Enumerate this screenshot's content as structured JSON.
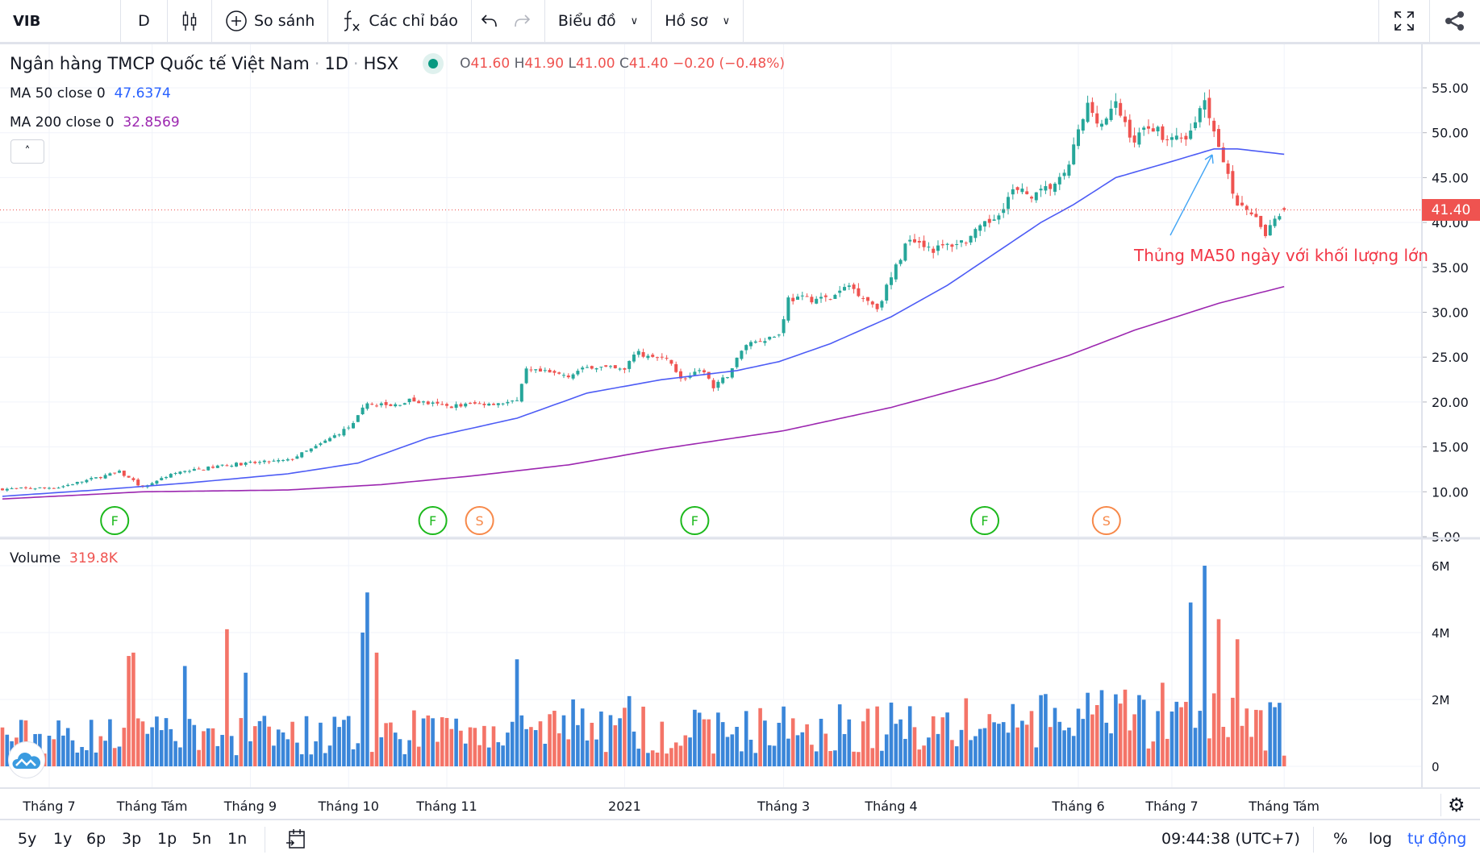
{
  "toolbar": {
    "symbol": "VIB",
    "interval": "D",
    "compare_label": "So sánh",
    "indicators_label": "Các chỉ báo",
    "chart_menu_label": "Biểu đồ",
    "profile_menu_label": "Hồ sơ"
  },
  "legend": {
    "name": "Ngân hàng TMCP Quốc tế Việt Nam",
    "timeframe": "1D",
    "exchange": "HSX",
    "o_label": "O",
    "o": "41.60",
    "h_label": "H",
    "h": "41.90",
    "l_label": "L",
    "l": "41.00",
    "c_label": "C",
    "c": "41.40",
    "change": "−0.20 (−0.48%)",
    "ma50_label": "MA 50 close 0",
    "ma50_value": "47.6374",
    "ma200_label": "MA 200 close 0",
    "ma200_value": "32.8569",
    "volume_label": "Volume",
    "volume_value": "319.8K"
  },
  "annotation": "Thủng MA50 ngày với khối lượng lớn",
  "current_price": "41.40",
  "colors": {
    "up": "#26a69a",
    "down": "#ef5350",
    "vol_up": "#3a86d9",
    "vol_down": "#f47468",
    "ma50": "#4d5cf5",
    "ma200": "#9c27b0",
    "event_f": "#1db91d",
    "event_s": "#f7894a"
  },
  "chart_data": {
    "type": "candlestick",
    "bars": 275,
    "price_axis": [
      "55.00",
      "50.00",
      "45.00",
      "40.00",
      "35.00",
      "30.00",
      "25.00",
      "20.00",
      "15.00",
      "10.00",
      "5.00"
    ],
    "ylim": [
      5,
      55
    ],
    "volume_axis": [
      "6M",
      "4M",
      "2M",
      "0"
    ],
    "volume_ylim": [
      0,
      6000000
    ],
    "time_labels": [
      {
        "label": "Tháng 7",
        "bar": 10
      },
      {
        "label": "Tháng Tám",
        "bar": 32
      },
      {
        "label": "Tháng 9",
        "bar": 53
      },
      {
        "label": "Tháng 10",
        "bar": 74
      },
      {
        "label": "Tháng 11",
        "bar": 95
      },
      {
        "label": "2021",
        "bar": 133
      },
      {
        "label": "Tháng 3",
        "bar": 167
      },
      {
        "label": "Tháng 4",
        "bar": 190
      },
      {
        "label": "Tháng 6",
        "bar": 230
      },
      {
        "label": "Tháng 7",
        "bar": 250
      },
      {
        "label": "Tháng Tám",
        "bar": 274
      }
    ],
    "close_anchors": [
      [
        0,
        10.3
      ],
      [
        12,
        10.5
      ],
      [
        25,
        12.2
      ],
      [
        30,
        10.5
      ],
      [
        36,
        12.0
      ],
      [
        48,
        13.0
      ],
      [
        61,
        13.5
      ],
      [
        67,
        15.0
      ],
      [
        75,
        17.5
      ],
      [
        78,
        20
      ],
      [
        83,
        19.5
      ],
      [
        87,
        20.2
      ],
      [
        95,
        19.5
      ],
      [
        101,
        19.8
      ],
      [
        110,
        20
      ],
      [
        112,
        23.5
      ],
      [
        121,
        23
      ],
      [
        126,
        24
      ],
      [
        133,
        23.5
      ],
      [
        135,
        25.5
      ],
      [
        143,
        24.5
      ],
      [
        145,
        22.5
      ],
      [
        150,
        23.5
      ],
      [
        152,
        21.5
      ],
      [
        155,
        23
      ],
      [
        159,
        26.5
      ],
      [
        166,
        27.5
      ],
      [
        168,
        31.5
      ],
      [
        177,
        31.5
      ],
      [
        181,
        33
      ],
      [
        187,
        30.5
      ],
      [
        191,
        35
      ],
      [
        194,
        38.5
      ],
      [
        199,
        37
      ],
      [
        206,
        38
      ],
      [
        212,
        40.5
      ],
      [
        216,
        43.5
      ],
      [
        221,
        43
      ],
      [
        227,
        45
      ],
      [
        230,
        50
      ],
      [
        232,
        53
      ],
      [
        235,
        51
      ],
      [
        238,
        53
      ],
      [
        242,
        49
      ],
      [
        245,
        51
      ],
      [
        250,
        49
      ],
      [
        254,
        50
      ],
      [
        257,
        53.5
      ],
      [
        260,
        49
      ],
      [
        262,
        45.5
      ],
      [
        264,
        42
      ],
      [
        267,
        41
      ],
      [
        270,
        38.5
      ],
      [
        271,
        40
      ],
      [
        274,
        41.4
      ]
    ],
    "ma50_anchors": [
      [
        0,
        9.5
      ],
      [
        20,
        10.2
      ],
      [
        40,
        11.0
      ],
      [
        61,
        12
      ],
      [
        76,
        13.2
      ],
      [
        91,
        16
      ],
      [
        110,
        18.2
      ],
      [
        125,
        21
      ],
      [
        141,
        22.5
      ],
      [
        157,
        23.5
      ],
      [
        166,
        24.5
      ],
      [
        177,
        26.5
      ],
      [
        190,
        29.5
      ],
      [
        202,
        33
      ],
      [
        212,
        36.5
      ],
      [
        222,
        40
      ],
      [
        229,
        42
      ],
      [
        238,
        45
      ],
      [
        250,
        46.8
      ],
      [
        259,
        48.2
      ],
      [
        264,
        48.2
      ],
      [
        274,
        47.6
      ]
    ],
    "ma200_anchors": [
      [
        0,
        9.2
      ],
      [
        30,
        10.0
      ],
      [
        61,
        10.2
      ],
      [
        81,
        10.8
      ],
      [
        101,
        11.8
      ],
      [
        121,
        13
      ],
      [
        141,
        14.8
      ],
      [
        167,
        16.8
      ],
      [
        190,
        19.4
      ],
      [
        212,
        22.5
      ],
      [
        228,
        25.2
      ],
      [
        242,
        28
      ],
      [
        260,
        31
      ],
      [
        274,
        32.86
      ]
    ],
    "volume_base": 900000,
    "volume_spikes": [
      [
        27,
        3300000
      ],
      [
        28,
        3400000
      ],
      [
        39,
        3000000
      ],
      [
        48,
        4100000
      ],
      [
        52,
        2800000
      ],
      [
        77,
        4000000
      ],
      [
        78,
        5200000
      ],
      [
        80,
        3400000
      ],
      [
        110,
        3200000
      ],
      [
        122,
        2000000
      ],
      [
        134,
        2100000
      ],
      [
        248,
        2500000
      ],
      [
        254,
        4900000
      ],
      [
        257,
        6000000
      ],
      [
        260,
        4400000
      ],
      [
        264,
        3800000
      ],
      [
        273,
        1900000
      ],
      [
        274,
        320000
      ]
    ],
    "events": [
      {
        "label": "F",
        "bar": 24
      },
      {
        "label": "F",
        "bar": 92
      },
      {
        "label": "S",
        "bar": 102
      },
      {
        "label": "F",
        "bar": 148
      },
      {
        "label": "F",
        "bar": 210
      },
      {
        "label": "S",
        "bar": 236
      }
    ]
  },
  "bottom": {
    "ranges": [
      "5y",
      "1y",
      "6p",
      "3p",
      "1p",
      "5n",
      "1n"
    ],
    "clock": "09:44:38 (UTC+7)",
    "percent": "%",
    "log": "log",
    "auto": "tự động"
  }
}
